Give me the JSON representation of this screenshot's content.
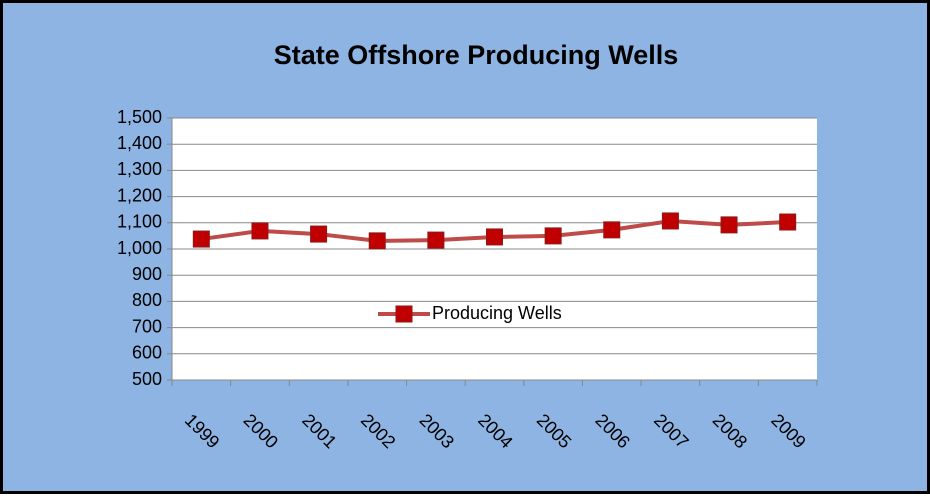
{
  "chart_data": {
    "type": "line",
    "title": "State Offshore Producing Wells",
    "categories": [
      "1999",
      "2000",
      "2001",
      "2002",
      "2003",
      "2004",
      "2005",
      "2006",
      "2007",
      "2008",
      "2009"
    ],
    "series": [
      {
        "name": "Producing Wells",
        "color": "#be4b48",
        "marker_color": "#c00000",
        "values": [
          1038,
          1069,
          1057,
          1031,
          1034,
          1046,
          1050,
          1073,
          1107,
          1092,
          1103
        ]
      }
    ],
    "ylim": [
      500,
      1500
    ],
    "yticks": [
      500,
      600,
      700,
      800,
      900,
      {
        "value": 1000,
        "label": "1,000"
      },
      {
        "value": 1100,
        "label": "1,100"
      },
      {
        "value": 1200,
        "label": "1,200"
      },
      {
        "value": 1300,
        "label": "1,300"
      },
      {
        "value": 1400,
        "label": "1,400"
      },
      {
        "value": 1500,
        "label": "1,500"
      }
    ],
    "grid": true,
    "legend": "center"
  }
}
